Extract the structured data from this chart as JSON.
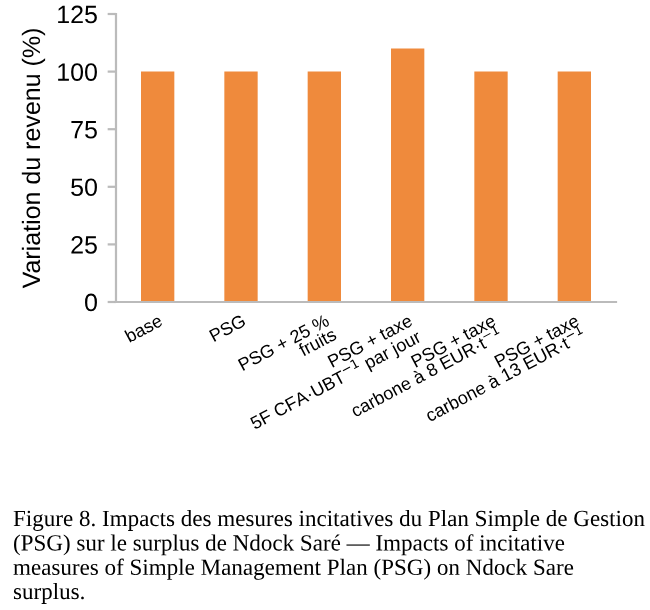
{
  "chart_data": {
    "type": "bar",
    "ylabel": "Variation du revenu (%)",
    "categories": [
      "base",
      "PSG",
      "PSG + 25 %\nfruits",
      "PSG + taxe\n5F CFA·UBT$^{−1}$ par jour",
      "PSG + taxe\ncarbone à 8 EUR·t$^{−1}$",
      "PSG + taxe\ncarbone à 13 EUR·t$^{−1}$"
    ],
    "values": [
      100,
      100,
      100,
      110,
      100,
      100
    ],
    "color": "#ef8a3c",
    "ylim": [
      0,
      125
    ],
    "yticks": [
      0,
      25,
      50,
      75,
      100,
      125
    ],
    "grid": false,
    "annotations": [
      "Figure 8. Impacts des mesures incitatives du Plan Simple de Gestion (PSG) sur le surplus de Ndock Saré — Impacts of incitative measures of Simple Management Plan (PSG) on Ndock Sare surplus."
    ]
  }
}
